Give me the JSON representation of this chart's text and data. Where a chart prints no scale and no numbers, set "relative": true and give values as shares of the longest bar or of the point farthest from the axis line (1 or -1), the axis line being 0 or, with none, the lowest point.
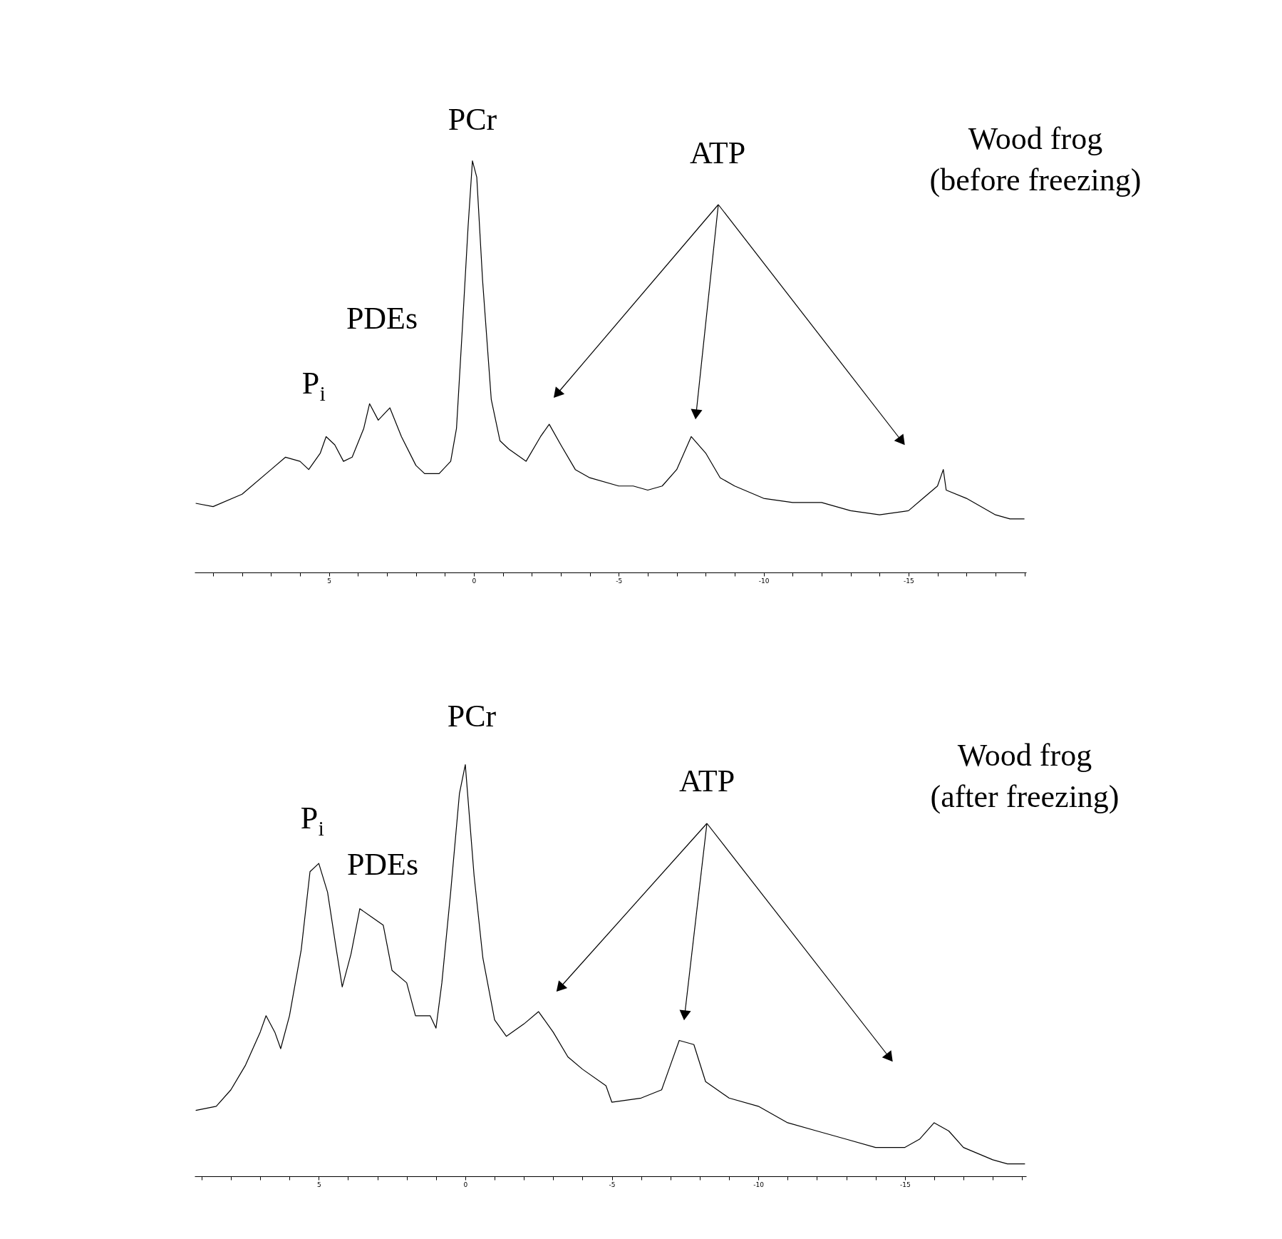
{
  "chart_data": [
    {
      "type": "line",
      "relative": true,
      "title": "Wood frog\n(before freezing)",
      "xlim": [
        9.64,
        -19.06
      ],
      "xticks": [
        {
          "value": 9,
          "label": null
        },
        {
          "value": 8,
          "label": null
        },
        {
          "value": 7,
          "label": null
        },
        {
          "value": 6,
          "label": null
        },
        5,
        {
          "value": 4,
          "label": null
        },
        {
          "value": 3,
          "label": null
        },
        {
          "value": 2,
          "label": null
        },
        {
          "value": 1,
          "label": null
        },
        0,
        {
          "value": -1,
          "label": null
        },
        {
          "value": -2,
          "label": null
        },
        {
          "value": -3,
          "label": null
        },
        {
          "value": -4,
          "label": null
        },
        -5,
        {
          "value": -6,
          "label": null
        },
        {
          "value": -7,
          "label": null
        },
        {
          "value": -8,
          "label": null
        },
        {
          "value": -9,
          "label": null
        },
        -10,
        {
          "value": -11,
          "label": null
        },
        {
          "value": -12,
          "label": null
        },
        {
          "value": -13,
          "label": null
        },
        {
          "value": -14,
          "label": null
        },
        -15,
        {
          "value": -16,
          "label": null
        },
        {
          "value": -17,
          "label": null
        },
        {
          "value": -18,
          "label": null
        },
        {
          "value": -19,
          "label": null
        }
      ],
      "x": [
        9.6,
        9.0,
        8.0,
        7.0,
        6.5,
        6.0,
        5.7,
        5.3,
        5.1,
        4.8,
        4.5,
        4.2,
        3.8,
        3.6,
        3.3,
        2.9,
        2.5,
        2.0,
        1.7,
        1.2,
        0.8,
        0.6,
        0.4,
        0.2,
        0.05,
        -0.1,
        -0.3,
        -0.6,
        -0.9,
        -1.2,
        -1.8,
        -2.3,
        -2.6,
        -3.0,
        -3.5,
        -4.0,
        -5.0,
        -5.5,
        -6.0,
        -6.5,
        -7.0,
        -7.5,
        -8.0,
        -8.5,
        -9.0,
        -10.0,
        -11.0,
        -12.0,
        -13.0,
        -14.0,
        -15.0,
        -15.5,
        -16.0,
        -16.2,
        -16.3,
        -17.0,
        -18.0,
        -18.5,
        -19.0
      ],
      "series": [
        {
          "color": "#000000",
          "values": [
            0.168,
            0.16,
            0.19,
            0.25,
            0.28,
            0.27,
            0.25,
            0.29,
            0.33,
            0.31,
            0.27,
            0.28,
            0.35,
            0.41,
            0.37,
            0.4,
            0.33,
            0.26,
            0.24,
            0.24,
            0.27,
            0.35,
            0.59,
            0.84,
            1.0,
            0.96,
            0.71,
            0.42,
            0.32,
            0.3,
            0.27,
            0.33,
            0.36,
            0.31,
            0.25,
            0.23,
            0.21,
            0.21,
            0.2,
            0.21,
            0.25,
            0.33,
            0.29,
            0.23,
            0.21,
            0.18,
            0.17,
            0.17,
            0.15,
            0.14,
            0.15,
            0.18,
            0.21,
            0.25,
            0.2,
            0.18,
            0.14,
            0.13,
            0.13
          ]
        }
      ],
      "annotations": [
        "PCr",
        "ATP",
        "PDEs",
        "P$_{i}$"
      ]
    },
    {
      "type": "line",
      "relative": true,
      "title": "Wood frog\n(after freezing)",
      "xlim": [
        9.24,
        -19.14
      ],
      "xticks": [
        {
          "value": 9,
          "label": null
        },
        {
          "value": 8,
          "label": null
        },
        {
          "value": 7,
          "label": null
        },
        {
          "value": 6,
          "label": null
        },
        5,
        {
          "value": 4,
          "label": null
        },
        {
          "value": 3,
          "label": null
        },
        {
          "value": 2,
          "label": null
        },
        {
          "value": 1,
          "label": null
        },
        0,
        {
          "value": -1,
          "label": null
        },
        {
          "value": -2,
          "label": null
        },
        {
          "value": -3,
          "label": null
        },
        {
          "value": -4,
          "label": null
        },
        -5,
        {
          "value": -6,
          "label": null
        },
        {
          "value": -7,
          "label": null
        },
        {
          "value": -8,
          "label": null
        },
        {
          "value": -9,
          "label": null
        },
        -10,
        {
          "value": -11,
          "label": null
        },
        {
          "value": -12,
          "label": null
        },
        {
          "value": -13,
          "label": null
        },
        {
          "value": -14,
          "label": null
        },
        -15,
        {
          "value": -16,
          "label": null
        },
        {
          "value": -17,
          "label": null
        },
        {
          "value": -18,
          "label": null
        },
        {
          "value": -19,
          "label": null
        }
      ],
      "x": [
        9.2,
        8.5,
        8.0,
        7.5,
        7.0,
        6.8,
        6.5,
        6.3,
        6.0,
        5.6,
        5.3,
        5.0,
        4.7,
        4.4,
        4.2,
        3.9,
        3.6,
        3.2,
        2.8,
        2.5,
        2.0,
        1.7,
        1.2,
        1.0,
        0.8,
        0.5,
        0.2,
        0.0,
        -0.3,
        -0.6,
        -1.0,
        -1.4,
        -2.0,
        -2.5,
        -3.0,
        -3.5,
        -4.0,
        -4.8,
        -5.0,
        -6.0,
        -6.7,
        -7.0,
        -7.3,
        -7.8,
        -8.2,
        -9.0,
        -10.0,
        -11.0,
        -12.0,
        -13.0,
        -14.0,
        -15.0,
        -15.5,
        -16.0,
        -16.5,
        -17.0,
        -18.0,
        -18.5,
        -19.1
      ],
      "series": [
        {
          "color": "#000000",
          "values": [
            0.16,
            0.17,
            0.21,
            0.27,
            0.35,
            0.39,
            0.35,
            0.31,
            0.39,
            0.55,
            0.74,
            0.76,
            0.69,
            0.55,
            0.46,
            0.54,
            0.65,
            0.63,
            0.61,
            0.5,
            0.47,
            0.39,
            0.39,
            0.36,
            0.47,
            0.69,
            0.93,
            1.0,
            0.73,
            0.53,
            0.38,
            0.34,
            0.37,
            0.4,
            0.35,
            0.29,
            0.26,
            0.22,
            0.18,
            0.19,
            0.21,
            0.27,
            0.33,
            0.32,
            0.23,
            0.19,
            0.17,
            0.13,
            0.11,
            0.09,
            0.07,
            0.07,
            0.09,
            0.13,
            0.11,
            0.07,
            0.04,
            0.03,
            0.03
          ]
        }
      ],
      "annotations": [
        "PCr",
        "ATP",
        "PDEs",
        "P$_{i}$"
      ]
    }
  ]
}
